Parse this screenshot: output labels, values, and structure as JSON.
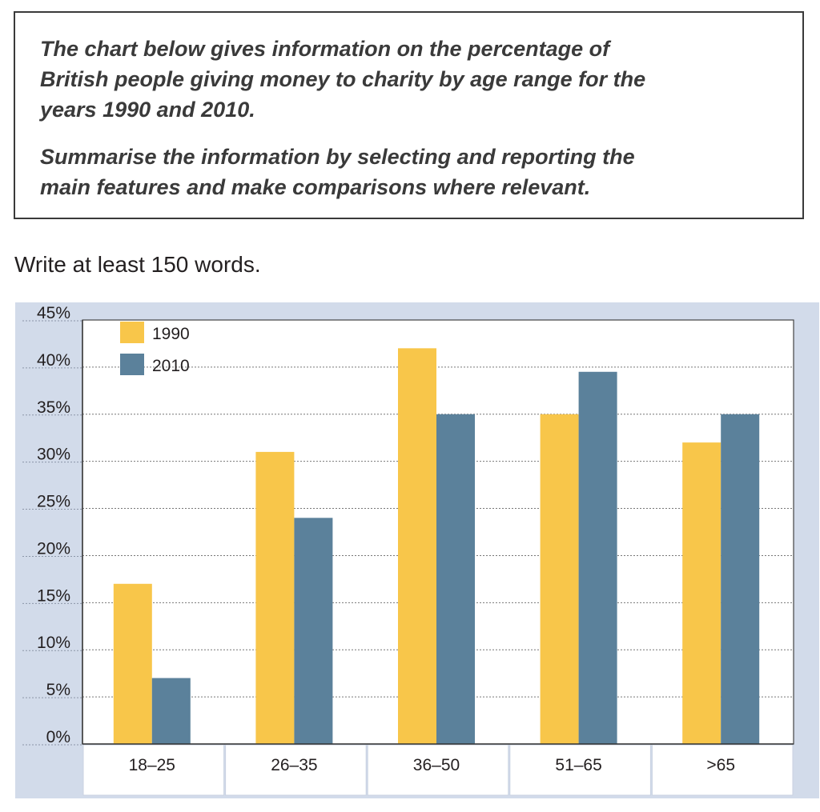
{
  "task": {
    "paragraph1": "The chart below gives information on the percentage of\nBritish people giving money to charity by age range for the\nyears 1990 and 2010.",
    "paragraph2": "Summarise the information by selecting and reporting the\nmain features and make comparisons where relevant."
  },
  "instruction": "Write at least 150 words.",
  "colors": {
    "panel_background": "#d2dbea",
    "plot_background": "#ffffff",
    "series_1990": "#f8c64a",
    "series_2010": "#5b819b",
    "gridline": "#777777",
    "text": "#231f20"
  },
  "chart_data": {
    "type": "bar",
    "title": "",
    "xlabel": "",
    "ylabel": "",
    "categories": [
      "18–25",
      "26–35",
      "36–50",
      "51–65",
      ">65"
    ],
    "series": [
      {
        "name": "1990",
        "values": [
          17,
          31,
          42,
          35,
          32
        ]
      },
      {
        "name": "2010",
        "values": [
          7,
          24,
          35,
          39.5,
          35
        ]
      }
    ],
    "y_ticks": [
      0,
      5,
      10,
      15,
      20,
      25,
      30,
      35,
      40,
      45
    ],
    "y_tick_suffix": "%",
    "ylim": [
      0,
      45
    ],
    "grid": true,
    "grid_style": "dotted horizontal",
    "legend_position": "top-left"
  }
}
